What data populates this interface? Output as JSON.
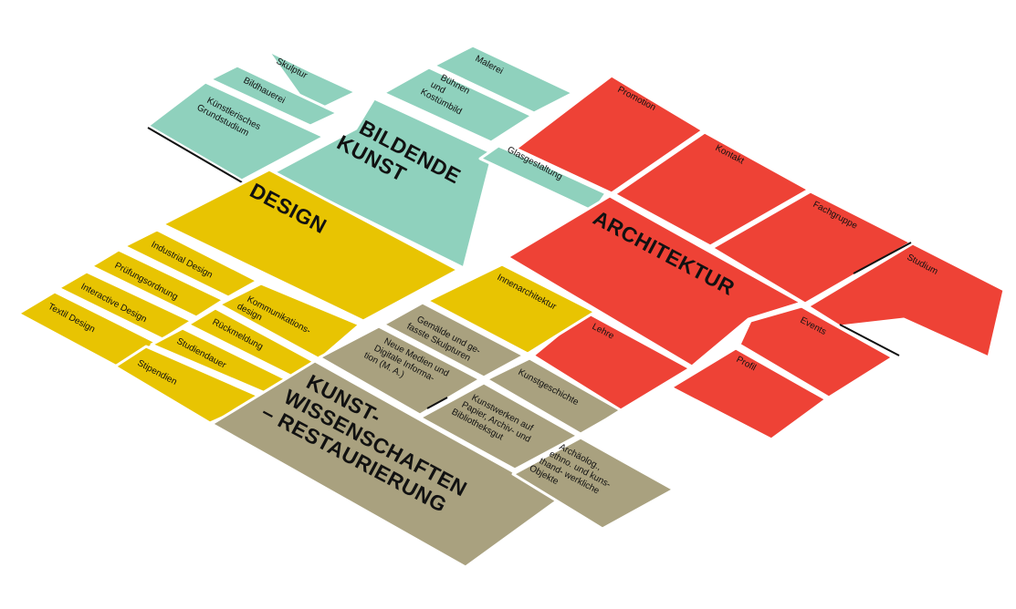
{
  "sections": {
    "bildende_kunst": {
      "color": "#8fd1bd",
      "title_lines": [
        "BILDENDE",
        "KUNST"
      ],
      "items": {
        "skulptur": "Skulptur",
        "bildhauerei": "Bildhauerei",
        "kuenstlerisches_grundstudium": [
          "Künstlerisches",
          "Grundstudium"
        ],
        "malerei": "Malerei",
        "buehnen_und_kostuembild": [
          "Bühnen",
          "und",
          "Kostümbild"
        ],
        "glasgestaltung": "Glasgestaltung"
      }
    },
    "architektur": {
      "color": "#ee4236",
      "title_lines": [
        "ARCHITEKTUR"
      ],
      "items": {
        "promotion": "Promotion",
        "kontakt": "Kontakt",
        "fachgruppe": "Fachgruppe",
        "studium": "Studium",
        "lehre": "Lehre",
        "events": "Events",
        "profil": "Profil"
      }
    },
    "design": {
      "color": "#e8c402",
      "title_lines": [
        "DESIGN"
      ],
      "items": {
        "industrial_design": "Industrial Design",
        "pruefungsordnung": "Prüfungsordnung",
        "interactive_design": "Interactive Design",
        "textil_design": "Textil Design",
        "kommunikationsdesign": [
          "Kommunikations-",
          "design"
        ],
        "rueckmeldung": "Rückmeldung",
        "studiendauer": "Studiendauer",
        "stipendien": "Stipendien",
        "innenarchitektur": "Innenarchitektur"
      }
    },
    "kunstwissenschaften": {
      "color": "#a9a17f",
      "title_lines": [
        "KUNST-",
        "WISSENSCHAFTEN",
        "– RESTAURIERUNG"
      ],
      "items": {
        "gemaelde": [
          "Gemälde und ge-",
          "fasste Skulpturen"
        ],
        "neue_medien": [
          "Neue Medien und",
          "Digitale Informa-",
          "tion (M. A.)"
        ],
        "kunstgeschichte": "Kunstgeschichte",
        "kunstwerken": [
          "Kunstwerken auf",
          "Papier, Archiv- und",
          "Bibliotheksgut"
        ],
        "archaeolog": [
          "Archäolog.,",
          "ethno. und kuns-",
          "thand- werkliche",
          "Objekte"
        ]
      }
    }
  }
}
